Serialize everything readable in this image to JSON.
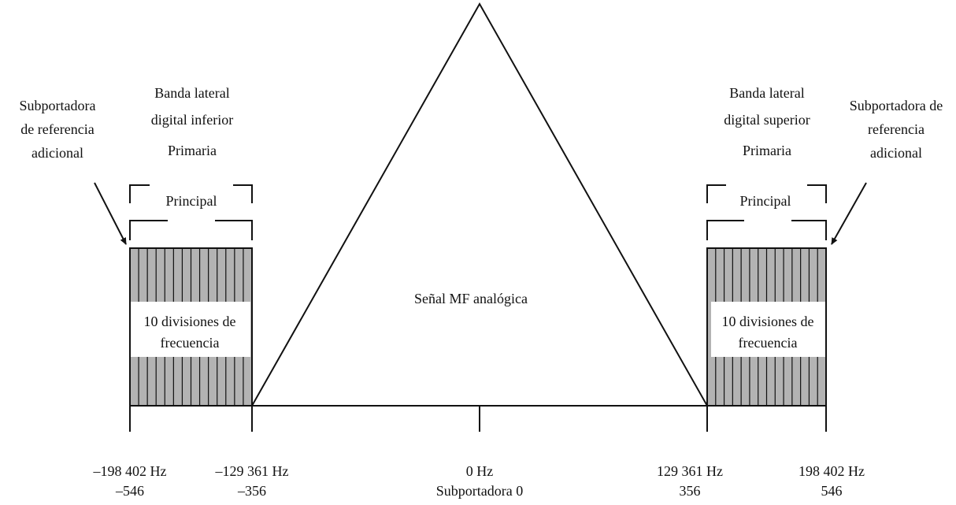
{
  "center_label": "Señal MF analógica",
  "lower_sideband": {
    "title_line1": "Banda lateral",
    "title_line2": "digital inferior",
    "title_line3": "Primaria",
    "principal_label": "Principal",
    "divisions_line1": "10 divisiones de",
    "divisions_line2": "frecuencia",
    "reference_line1": "Subportadora",
    "reference_line2": "de referencia",
    "reference_line3": "adicional"
  },
  "upper_sideband": {
    "title_line1": "Banda lateral",
    "title_line2": "digital superior",
    "title_line3": "Primaria",
    "principal_label": "Principal",
    "divisions_line1": "10 divisiones de",
    "divisions_line2": "frecuencia",
    "reference_line1": "Subportadora de",
    "reference_line2": "referencia",
    "reference_line3": "adicional"
  },
  "axis_ticks": [
    {
      "freq": "–198 402 Hz",
      "subcarrier": "–546"
    },
    {
      "freq": "–129 361 Hz",
      "subcarrier": "–356"
    },
    {
      "freq": "0 Hz",
      "subcarrier": "Subportadora 0"
    },
    {
      "freq": "129 361 Hz",
      "subcarrier": "356"
    },
    {
      "freq": "198 402 Hz",
      "subcarrier": "546"
    }
  ],
  "colors": {
    "band_fill": "#b3b3b3",
    "line": "#111111"
  }
}
